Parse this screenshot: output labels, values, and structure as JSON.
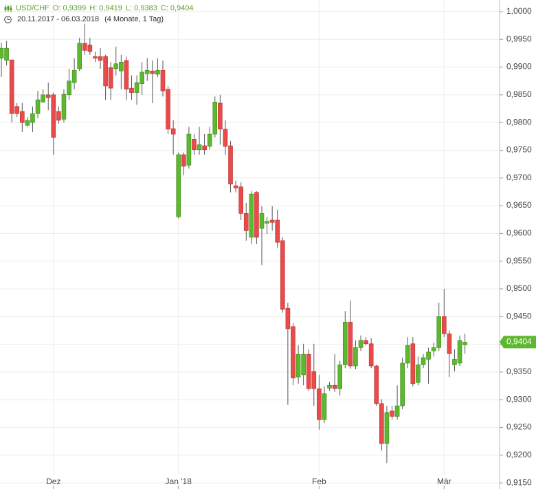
{
  "chart_data": {
    "type": "candlestick",
    "title": "USD/CHF",
    "title_values": [
      "O: 0,9399",
      "H: 0,9419",
      "L: 0,9383",
      "C: 0,9404"
    ],
    "subtitle": "20.11.2017 - 06.03.2018",
    "period": "(4 Monate, 1 Tag)",
    "up_color": "#5cb82e",
    "down_color": "#e84b4b",
    "categories": [
      null,
      null,
      null,
      null,
      null,
      null,
      null,
      null,
      null,
      null,
      "Dez",
      null,
      null,
      null,
      null,
      null,
      null,
      null,
      null,
      null,
      null,
      null,
      null,
      null,
      null,
      null,
      null,
      null,
      null,
      null,
      null,
      null,
      null,
      null,
      "Jan '18",
      null,
      null,
      null,
      null,
      null,
      null,
      null,
      null,
      null,
      null,
      null,
      null,
      null,
      null,
      null,
      null,
      null,
      null,
      null,
      null,
      null,
      null,
      null,
      null,
      null,
      null,
      "Feb",
      null,
      null,
      null,
      null,
      null,
      null,
      null,
      null,
      null,
      null,
      null,
      null,
      null,
      null,
      null,
      null,
      null,
      null,
      null,
      null,
      null,
      null,
      null,
      "Mär",
      null,
      null,
      null,
      null
    ],
    "open": [
      0.9916,
      0.9912,
      0.9913,
      0.9829,
      0.982,
      0.9795,
      0.98,
      0.9816,
      0.9837,
      0.985,
      0.985,
      0.982,
      0.9806,
      0.985,
      0.9872,
      0.9897,
      0.9943,
      0.994,
      0.9919,
      0.9919,
      0.9919,
      0.9899,
      0.9897,
      0.9893,
      0.9912,
      0.9862,
      0.9854,
      0.987,
      0.9888,
      0.9893,
      0.9887,
      0.9894,
      0.986,
      0.9789,
      0.963,
      0.9742,
      0.9723,
      0.977,
      0.9751,
      0.9758,
      0.9757,
      0.9779,
      0.9835,
      0.9788,
      0.9758,
      0.9686,
      0.9684,
      0.9636,
      0.9593,
      0.9674,
      0.9609,
      0.9618,
      0.9624,
      0.9624,
      0.9587,
      0.9465,
      0.9432,
      0.9341,
      0.9345,
      0.9382,
      0.9351,
      0.932,
      0.9264,
      0.9321,
      0.9326,
      0.932,
      0.9363,
      0.944,
      0.9361,
      0.9394,
      0.9407,
      0.9401,
      0.9361,
      0.9293,
      0.9221,
      0.928,
      0.927,
      0.9289,
      0.9366,
      0.9401,
      0.9331,
      0.9363,
      0.9373,
      0.9388,
      0.9394,
      0.945,
      0.9419,
      0.9363,
      0.9366,
      0.9399
    ],
    "high": [
      0.9944,
      0.9947,
      0.9913,
      0.9835,
      0.9835,
      0.981,
      0.9829,
      0.9857,
      0.986,
      0.9872,
      0.9854,
      0.9829,
      0.986,
      0.9897,
      0.9916,
      0.9953,
      0.9978,
      0.9953,
      0.9928,
      0.9934,
      0.9922,
      0.9909,
      0.9937,
      0.9922,
      0.9919,
      0.9885,
      0.9885,
      0.9909,
      0.9916,
      0.9912,
      0.9916,
      0.9912,
      0.9866,
      0.9804,
      0.9746,
      0.9746,
      0.9792,
      0.9779,
      0.9792,
      0.9779,
      0.9792,
      0.9847,
      0.985,
      0.9804,
      0.9767,
      0.9695,
      0.9692,
      0.9655,
      0.9676,
      0.9676,
      0.9649,
      0.963,
      0.9649,
      0.9643,
      0.9593,
      0.9475,
      0.9438,
      0.9398,
      0.9401,
      0.9391,
      0.9401,
      0.9345,
      0.9324,
      0.9332,
      0.9382,
      0.937,
      0.946,
      0.9479,
      0.9407,
      0.9416,
      0.9413,
      0.9411,
      0.9363,
      0.9301,
      0.9289,
      0.9289,
      0.9326,
      0.9376,
      0.9413,
      0.9413,
      0.9378,
      0.9382,
      0.9394,
      0.9403,
      0.9475,
      0.95,
      0.9425,
      0.9391,
      0.9416,
      0.9419
    ],
    "low": [
      0.9882,
      0.9903,
      0.98,
      0.981,
      0.9783,
      0.9792,
      0.9783,
      0.9808,
      0.9835,
      0.9822,
      0.9742,
      0.9798,
      0.98,
      0.9841,
      0.986,
      0.9893,
      0.9922,
      0.9922,
      0.9909,
      0.9897,
      0.9841,
      0.9841,
      0.9885,
      0.986,
      0.9841,
      0.9841,
      0.9832,
      0.985,
      0.9875,
      0.9835,
      0.9882,
      0.9847,
      0.9779,
      0.9742,
      0.9627,
      0.9705,
      0.9717,
      0.9742,
      0.9742,
      0.9742,
      0.9751,
      0.9773,
      0.976,
      0.9742,
      0.9674,
      0.9674,
      0.9624,
      0.9587,
      0.9581,
      0.9581,
      0.9543,
      0.9599,
      0.9605,
      0.9574,
      0.9457,
      0.9291,
      0.9326,
      0.9329,
      0.9326,
      0.9316,
      0.9289,
      0.9246,
      0.9258,
      0.9316,
      0.9314,
      0.9308,
      0.9357,
      0.9356,
      0.9355,
      0.9388,
      0.9398,
      0.9357,
      0.9289,
      0.9208,
      0.9186,
      0.9264,
      0.9264,
      0.9283,
      0.9357,
      0.9324,
      0.9326,
      0.9357,
      0.9329,
      0.9378,
      0.9388,
      0.9413,
      0.9341,
      0.9351,
      0.9361,
      0.9383
    ],
    "close": [
      0.9934,
      0.9934,
      0.9816,
      0.9816,
      0.98,
      0.9804,
      0.9816,
      0.9841,
      0.985,
      0.9845,
      0.9773,
      0.9804,
      0.9851,
      0.9875,
      0.9894,
      0.9943,
      0.993,
      0.9928,
      0.9916,
      0.9912,
      0.9866,
      0.9862,
      0.9906,
      0.9909,
      0.986,
      0.9854,
      0.9872,
      0.9891,
      0.9894,
      0.9888,
      0.9894,
      0.9857,
      0.9788,
      0.9779,
      0.9742,
      0.9721,
      0.9779,
      0.9751,
      0.976,
      0.9751,
      0.9779,
      0.9837,
      0.9788,
      0.9757,
      0.9689,
      0.9682,
      0.9636,
      0.9605,
      0.9671,
      0.9593,
      0.9636,
      0.9622,
      0.962,
      0.9584,
      0.9463,
      0.9428,
      0.9339,
      0.9382,
      0.9382,
      0.932,
      0.932,
      0.9264,
      0.9311,
      0.9326,
      0.932,
      0.9363,
      0.944,
      0.9361,
      0.9394,
      0.9407,
      0.9401,
      0.9361,
      0.9293,
      0.9221,
      0.9277,
      0.927,
      0.9289,
      0.9366,
      0.9398,
      0.9329,
      0.9363,
      0.9376,
      0.9386,
      0.9394,
      0.945,
      0.9419,
      0.9383,
      0.9373,
      0.9407,
      0.9404
    ],
    "last_label": "0,9404",
    "ylim": [
      0.9139,
      1.0021
    ],
    "yticks": [
      {
        "value": 1.0,
        "label": "1,0000"
      },
      {
        "value": 0.995,
        "label": "0,9950"
      },
      {
        "value": 0.99,
        "label": "0,9900"
      },
      {
        "value": 0.985,
        "label": "0,9850"
      },
      {
        "value": 0.98,
        "label": "0,9800"
      },
      {
        "value": 0.975,
        "label": "0,9750"
      },
      {
        "value": 0.97,
        "label": "0,9700"
      },
      {
        "value": 0.965,
        "label": "0,9650"
      },
      {
        "value": 0.96,
        "label": "0,9600"
      },
      {
        "value": 0.955,
        "label": "0,9550"
      },
      {
        "value": 0.95,
        "label": "0,9500"
      },
      {
        "value": 0.945,
        "label": "0,9450"
      },
      {
        "value": 0.94,
        "label": "0,9400"
      },
      {
        "value": 0.935,
        "label": "0,9350"
      },
      {
        "value": 0.93,
        "label": "0,9300"
      },
      {
        "value": 0.925,
        "label": "0,9250"
      },
      {
        "value": 0.92,
        "label": "0,9200"
      },
      {
        "value": 0.915,
        "label": "0,9150"
      }
    ],
    "grid": true
  }
}
